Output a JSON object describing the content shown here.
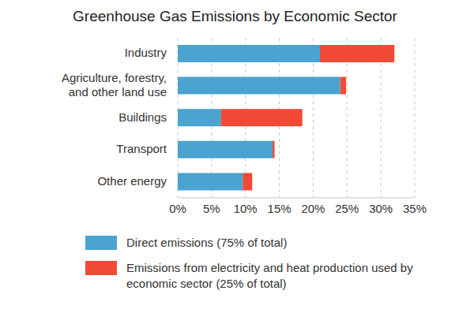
{
  "chart_data": {
    "type": "bar",
    "title": "Greenhouse Gas Emissions by Economic Sector",
    "orientation": "horizontal",
    "stacked": true,
    "grid": true,
    "legend": "bottom",
    "categories": [
      "Industry",
      "Agriculture, forestry, and other land use",
      "Buildings",
      "Transport",
      "Other energy"
    ],
    "series": [
      {
        "name": "Direct emissions (75% of total)",
        "color": "#4ba3d0",
        "values": [
          21,
          24,
          6.4,
          14,
          9.6
        ]
      },
      {
        "name": "Emissions from electricity and heat production used by economic sector (25% of total)",
        "color": "#f04a36",
        "values": [
          11,
          0.87,
          12,
          0.3,
          1.4
        ]
      }
    ],
    "xlim": [
      0,
      35
    ],
    "xticks": [
      {
        "value": 0,
        "label": "0%"
      },
      {
        "value": 5,
        "label": "5%"
      },
      {
        "value": 10,
        "label": "10%"
      },
      {
        "value": 15,
        "label": "15%"
      },
      {
        "value": 20,
        "label": "20%"
      },
      {
        "value": 25,
        "label": "25%"
      },
      {
        "value": 30,
        "label": "30%"
      },
      {
        "value": 35,
        "label": "35%"
      }
    ]
  }
}
